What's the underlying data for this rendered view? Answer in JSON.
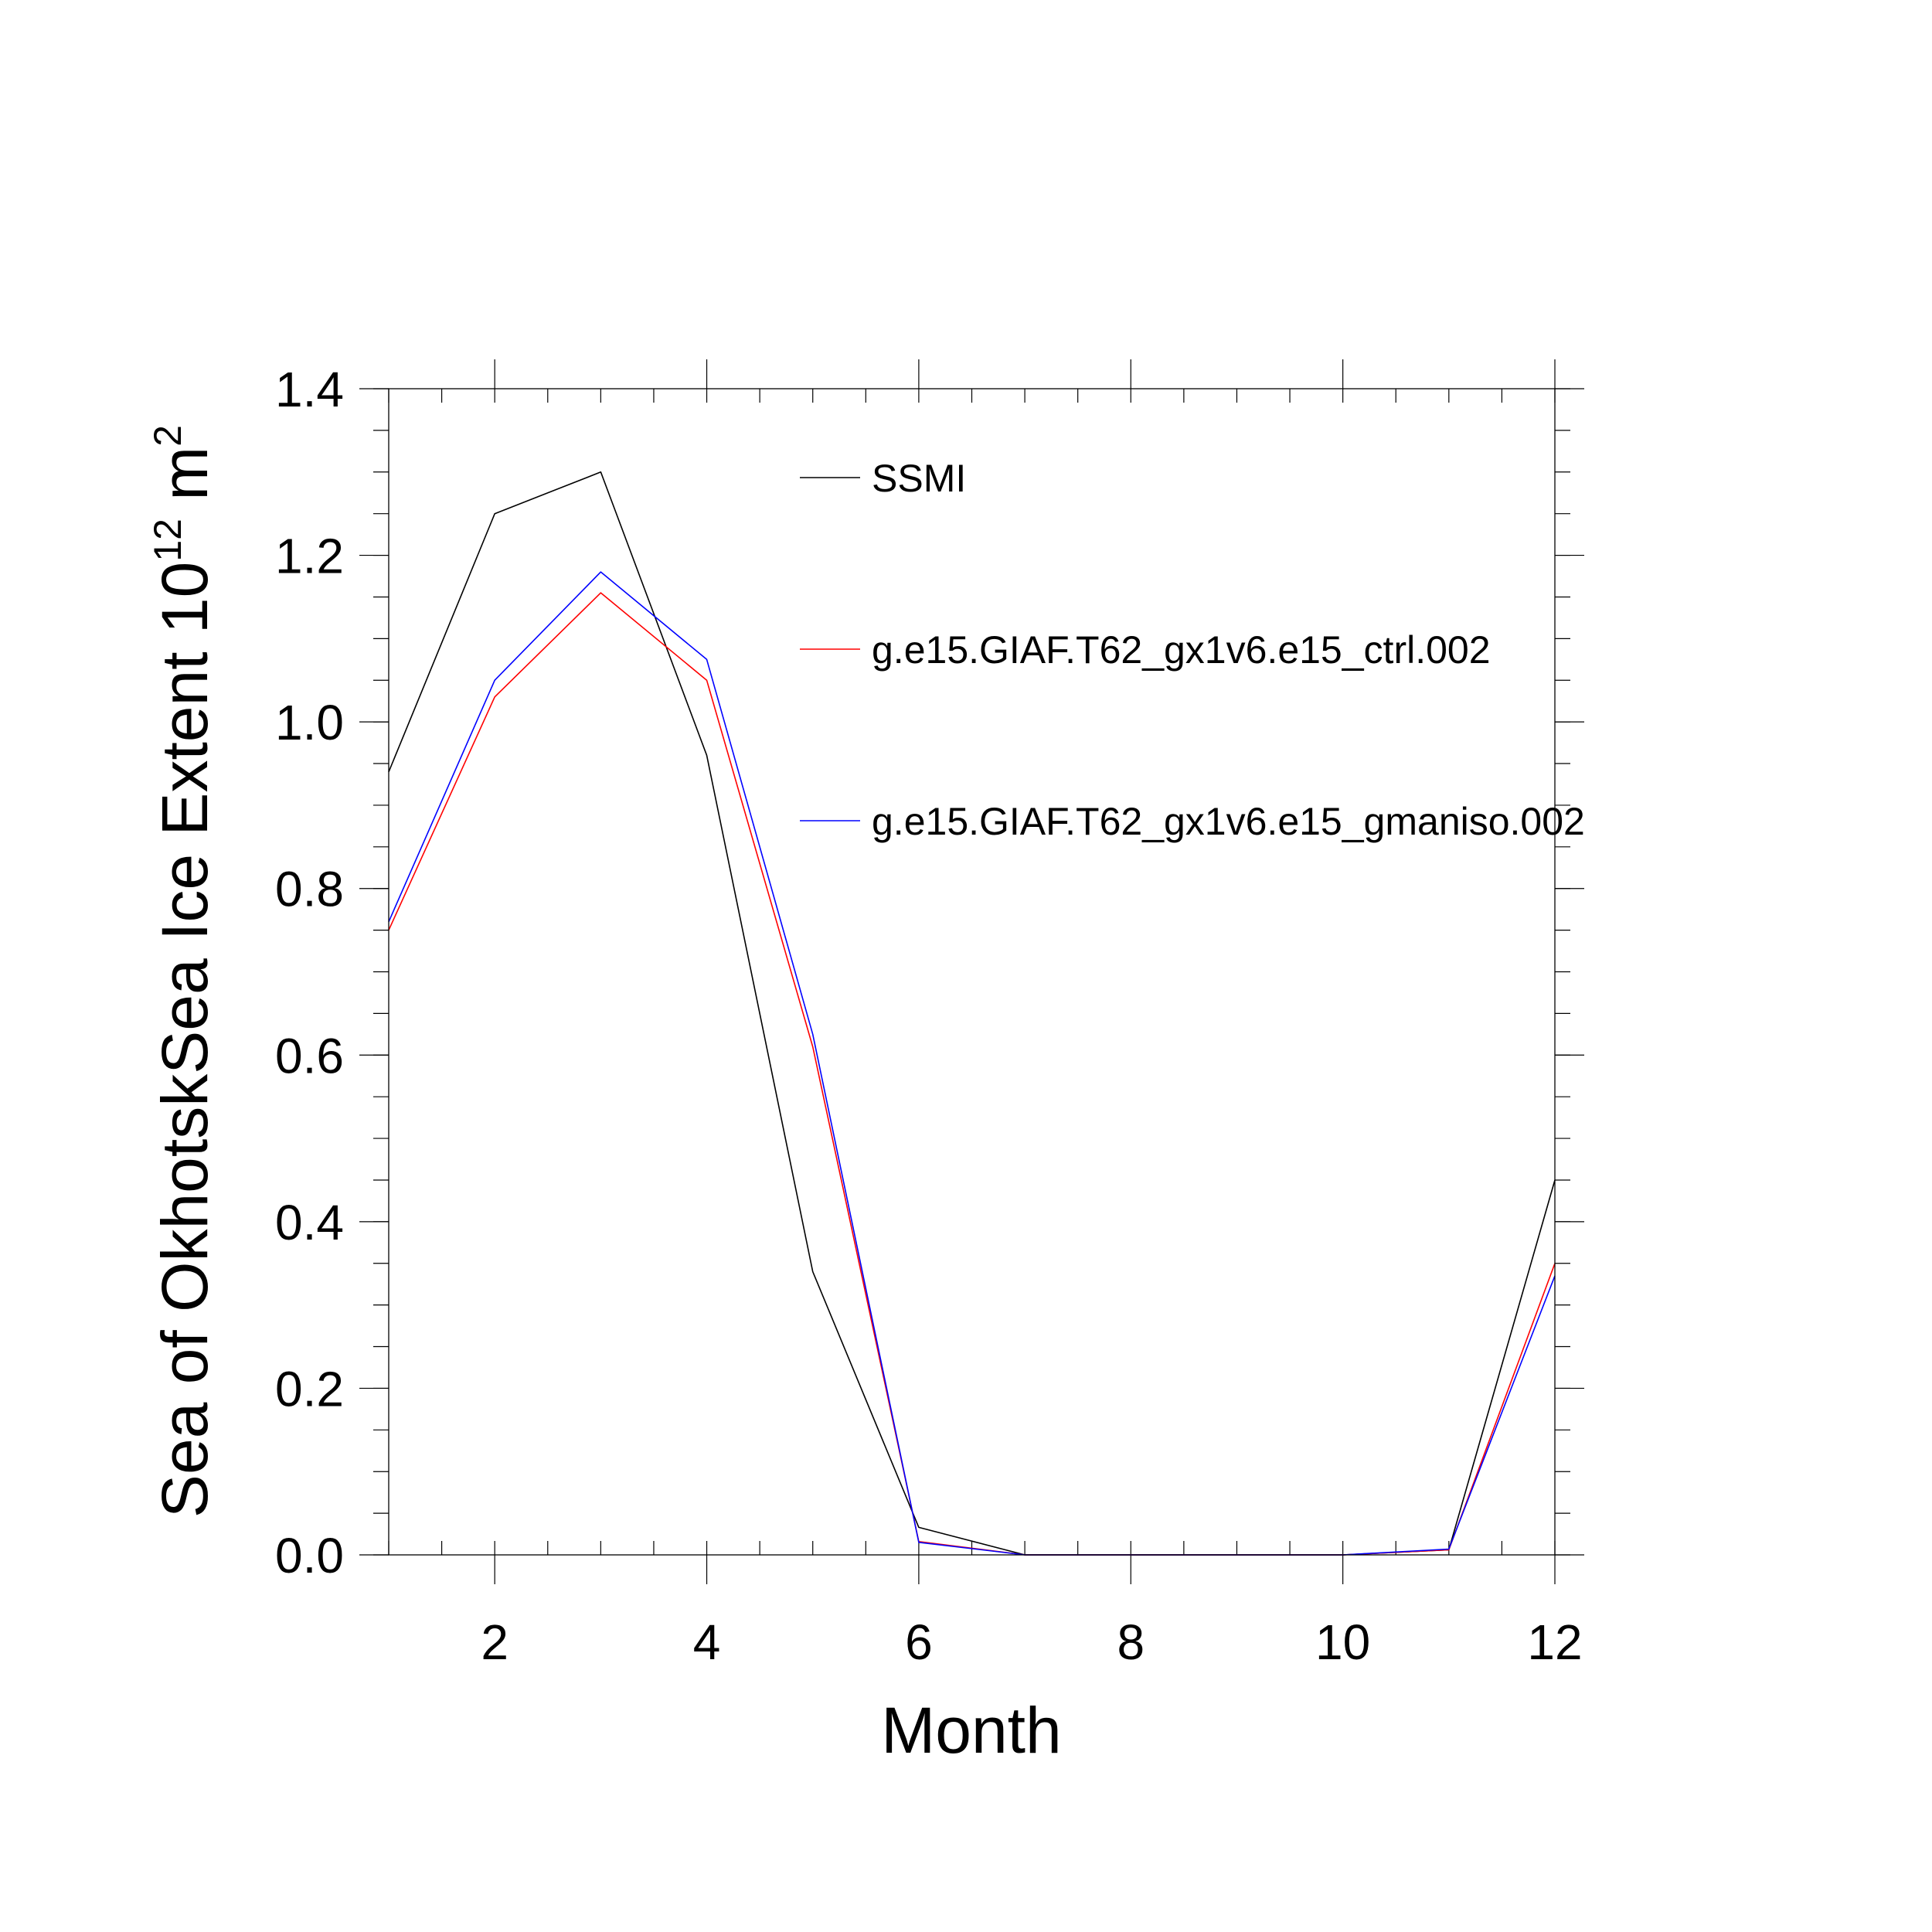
{
  "chart_data": {
    "type": "line",
    "title": "",
    "xlabel": "Month",
    "ylabel": {
      "base": "Sea of OkhotskSea Ice Extent 10",
      "exp1": "12",
      "unit": " m",
      "exp2": "2"
    },
    "xlim": [
      1,
      12
    ],
    "ylim": [
      0.0,
      1.4
    ],
    "xticks": [
      2,
      4,
      6,
      8,
      10,
      12
    ],
    "xtick_labels": [
      "2",
      "4",
      "6",
      "8",
      "10",
      "12"
    ],
    "yticks": [
      0.0,
      0.2,
      0.4,
      0.6,
      0.8,
      1.0,
      1.2,
      1.4
    ],
    "ytick_labels": [
      "0.0",
      "0.2",
      "0.4",
      "0.6",
      "0.8",
      "1.0",
      "1.2",
      "1.4"
    ],
    "grid": false,
    "legend": "top-center",
    "x": [
      1,
      2,
      3,
      4,
      5,
      6,
      7,
      8,
      9,
      10,
      11,
      12
    ],
    "series": [
      {
        "name": "SSMI",
        "color": "#000000",
        "values": [
          0.94,
          1.25,
          1.3,
          0.96,
          0.34,
          0.033,
          0.0,
          0.0,
          0.0,
          0.0,
          0.006,
          0.45
        ]
      },
      {
        "name": "g.e15.GIAF.T62_gx1v6.e15_ctrl.002",
        "color": "#ff0000",
        "values": [
          0.75,
          1.03,
          1.155,
          1.05,
          0.61,
          0.016,
          0.0,
          0.0,
          0.0,
          0.0,
          0.006,
          0.35
        ]
      },
      {
        "name": "g.e15.GIAF.T62_gx1v6.e15_gmaniso.002",
        "color": "#0000ff",
        "values": [
          0.76,
          1.05,
          1.18,
          1.075,
          0.625,
          0.015,
          0.0,
          0.0,
          0.0,
          0.0,
          0.007,
          0.335
        ]
      }
    ]
  }
}
